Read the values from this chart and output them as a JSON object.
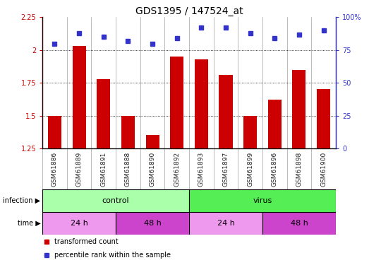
{
  "title": "GDS1395 / 147524_at",
  "samples": [
    "GSM61886",
    "GSM61889",
    "GSM61891",
    "GSM61888",
    "GSM61890",
    "GSM61892",
    "GSM61893",
    "GSM61897",
    "GSM61899",
    "GSM61896",
    "GSM61898",
    "GSM61900"
  ],
  "transformed_count": [
    1.5,
    2.03,
    1.78,
    1.5,
    1.35,
    1.95,
    1.93,
    1.81,
    1.5,
    1.62,
    1.85,
    1.7
  ],
  "percentile_rank": [
    80,
    88,
    85,
    82,
    80,
    84,
    92,
    92,
    88,
    84,
    87,
    90
  ],
  "ylim_left": [
    1.25,
    2.25
  ],
  "ylim_right": [
    0,
    100
  ],
  "bar_color": "#cc0000",
  "dot_color": "#3333cc",
  "gridline_values": [
    1.5,
    1.75,
    2.0
  ],
  "infection_groups": [
    {
      "label": "control",
      "start": 0,
      "end": 6,
      "color": "#aaffaa"
    },
    {
      "label": "virus",
      "start": 6,
      "end": 12,
      "color": "#55ee55"
    }
  ],
  "time_groups": [
    {
      "label": "24 h",
      "start": 0,
      "end": 3,
      "color": "#ee99ee"
    },
    {
      "label": "48 h",
      "start": 3,
      "end": 6,
      "color": "#cc44cc"
    },
    {
      "label": "24 h",
      "start": 6,
      "end": 9,
      "color": "#ee99ee"
    },
    {
      "label": "48 h",
      "start": 9,
      "end": 12,
      "color": "#cc44cc"
    }
  ],
  "legend_items": [
    {
      "label": "transformed count",
      "color": "#cc0000"
    },
    {
      "label": "percentile rank within the sample",
      "color": "#3333cc"
    }
  ],
  "infection_label": "infection",
  "time_label": "time",
  "bg_color": "#ffffff",
  "axis_color_left": "#cc0000",
  "axis_color_right": "#3333cc",
  "title_fontsize": 10,
  "tick_fontsize": 7,
  "label_fontsize": 8,
  "sample_label_color": "#222222",
  "sample_bg_color": "#cccccc",
  "yticks_left": [
    1.25,
    1.5,
    1.75,
    2.0,
    2.25
  ],
  "ytick_labels_left": [
    "1.25",
    "1.5",
    "1.75",
    "2",
    "2.25"
  ],
  "yticks_right": [
    0,
    25,
    50,
    75,
    100
  ],
  "ytick_labels_right": [
    "0",
    "25",
    "50",
    "75",
    "100%"
  ]
}
